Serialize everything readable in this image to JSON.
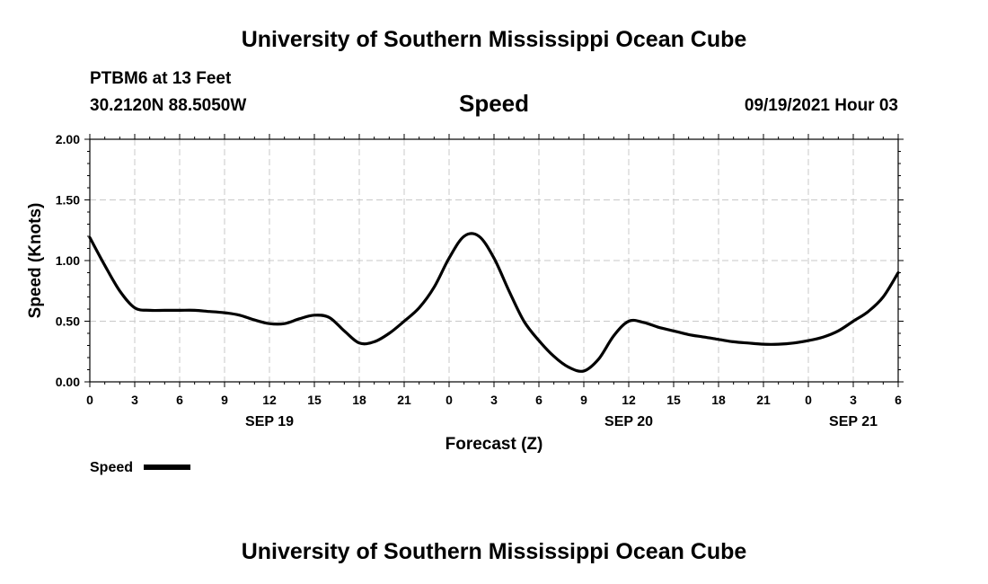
{
  "header": {
    "title": "University of Southern Mississippi Ocean Cube"
  },
  "station": {
    "name_depth": "PTBM6 at 13 Feet",
    "coordinates": "30.2120N  88.5050W"
  },
  "plot_title": "Speed",
  "timestamp": "09/19/2021 Hour 03",
  "footer": {
    "title": "University of Southern Mississippi Ocean Cube"
  },
  "chart_data": {
    "type": "line",
    "title": "Speed",
    "xlabel": "Forecast (Z)",
    "ylabel": "Speed (Knots)",
    "ylim": [
      0,
      2
    ],
    "xlim": [
      0,
      54
    ],
    "y_ticks": [
      "0.00",
      "0.50",
      "1.00",
      "1.50",
      "2.00"
    ],
    "y_tick_values": [
      0,
      0.5,
      1,
      1.5,
      2
    ],
    "x_tick_labels": [
      "0",
      "3",
      "6",
      "9",
      "12",
      "15",
      "18",
      "21",
      "0",
      "3",
      "6",
      "9",
      "12",
      "15",
      "18",
      "21",
      "0",
      "3",
      "6"
    ],
    "date_labels": [
      {
        "label": "SEP 19",
        "hour": 12
      },
      {
        "label": "SEP 20",
        "hour": 36
      },
      {
        "label": "SEP 21",
        "hour": 51
      }
    ],
    "grid": true,
    "grid_style": "dashed",
    "legend": {
      "position": "bottom-left",
      "entries": [
        "Speed"
      ]
    },
    "series": [
      {
        "name": "Speed",
        "color": "#000000",
        "x": [
          0,
          1,
          2,
          3,
          4,
          5,
          6,
          7,
          8,
          9,
          10,
          11,
          12,
          13,
          14,
          15,
          16,
          17,
          18,
          19,
          20,
          21,
          22,
          23,
          24,
          25,
          26,
          27,
          28,
          29,
          30,
          31,
          32,
          33,
          34,
          35,
          36,
          37,
          38,
          39,
          40,
          41,
          42,
          43,
          44,
          45,
          46,
          47,
          48,
          49,
          50,
          51,
          52,
          53,
          54
        ],
        "y": [
          1.19,
          0.96,
          0.75,
          0.61,
          0.59,
          0.59,
          0.59,
          0.59,
          0.58,
          0.57,
          0.55,
          0.51,
          0.48,
          0.48,
          0.52,
          0.55,
          0.53,
          0.42,
          0.32,
          0.33,
          0.4,
          0.5,
          0.61,
          0.78,
          1.02,
          1.2,
          1.2,
          1.02,
          0.75,
          0.5,
          0.34,
          0.21,
          0.12,
          0.09,
          0.19,
          0.38,
          0.5,
          0.49,
          0.45,
          0.42,
          0.39,
          0.37,
          0.35,
          0.33,
          0.32,
          0.31,
          0.31,
          0.32,
          0.34,
          0.37,
          0.42,
          0.5,
          0.58,
          0.7,
          0.9
        ]
      }
    ]
  }
}
